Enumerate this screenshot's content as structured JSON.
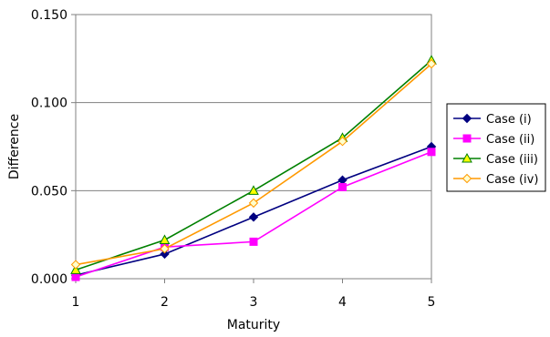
{
  "chart_data": {
    "type": "line",
    "title": "",
    "xlabel": "Maturity",
    "ylabel": "Difference",
    "x": [
      1,
      2,
      3,
      4,
      5
    ],
    "x_tick_labels": [
      "1",
      "2",
      "3",
      "4",
      "5"
    ],
    "ylim": [
      0,
      0.15
    ],
    "y_ticks": [
      0,
      0.05,
      0.1,
      0.15
    ],
    "y_tick_labels": [
      "0.000",
      "0.050",
      "0.100",
      "0.150"
    ],
    "grid": "horizontal",
    "legend_placement": "right",
    "series": [
      {
        "name": "Case (i)",
        "values": [
          0.002,
          0.014,
          0.035,
          0.056,
          0.075
        ],
        "color": "#000080",
        "marker": "diamond"
      },
      {
        "name": "Case (ii)",
        "values": [
          0.001,
          0.018,
          0.021,
          0.052,
          0.072
        ],
        "color": "#ff00ff",
        "marker": "square"
      },
      {
        "name": "Case (iii)",
        "values": [
          0.005,
          0.022,
          0.05,
          0.08,
          0.124
        ],
        "color": "#008000",
        "marker": "triangle",
        "marker_fill": "#ffff00"
      },
      {
        "name": "Case (iv)",
        "values": [
          0.008,
          0.017,
          0.043,
          0.078,
          0.122
        ],
        "color": "#ff9900",
        "marker": "diamond-open",
        "marker_fill": "#ffffcc"
      }
    ]
  }
}
